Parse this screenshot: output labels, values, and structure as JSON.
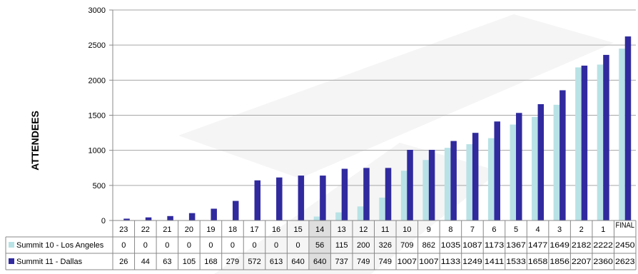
{
  "chart_data": {
    "type": "bar",
    "ylabel": "ATTENDEES",
    "xlabel": "",
    "title": "",
    "ylim": [
      0,
      3000
    ],
    "yticks": [
      0,
      500,
      1000,
      1500,
      2000,
      2500,
      3000
    ],
    "grid": true,
    "legend": "data-table-left",
    "highlight_category": "14",
    "categories": [
      "23",
      "22",
      "21",
      "20",
      "19",
      "18",
      "17",
      "16",
      "15",
      "14",
      "13",
      "12",
      "11",
      "10",
      "9",
      "8",
      "7",
      "6",
      "5",
      "4",
      "3",
      "2",
      "1",
      "FINAL"
    ],
    "series": [
      {
        "name": "Summit 10 - Los Angeles",
        "color": "#b8e2e6",
        "values": [
          0,
          0,
          0,
          0,
          0,
          0,
          0,
          0,
          0,
          56,
          115,
          200,
          326,
          709,
          862,
          1035,
          1087,
          1173,
          1367,
          1477,
          1649,
          2182,
          2222,
          2450
        ]
      },
      {
        "name": "Summit 11 - Dallas",
        "color": "#302a9e",
        "values": [
          26,
          44,
          63,
          105,
          168,
          279,
          572,
          613,
          640,
          640,
          737,
          749,
          749,
          1007,
          1007,
          1133,
          1249,
          1411,
          1533,
          1658,
          1856,
          2207,
          2360,
          2623
        ]
      }
    ]
  }
}
